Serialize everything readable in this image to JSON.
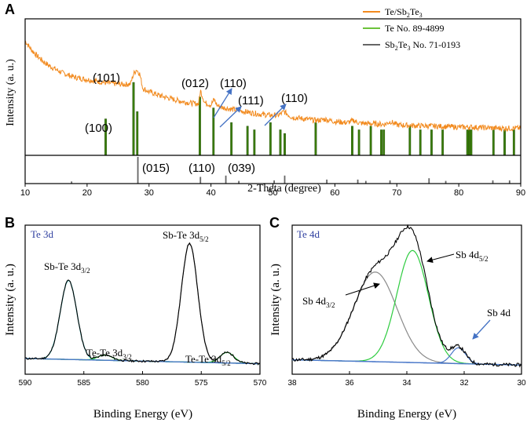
{
  "colors": {
    "xrd": "#f28a1e",
    "te_ref": "#3a7d0a",
    "te_ref_legend": "#6cc23a",
    "sb2te3_ref": "#666666",
    "fit_green": "#2ecc40",
    "fit_gray": "#8a8a8a",
    "fit_cyan": "#2ab7b7",
    "background": "#4a78c9",
    "annotation_blue": "#4472c4",
    "panel_label_blue": "#3040a0"
  },
  "panels": {
    "a": {
      "label": "A"
    },
    "b": {
      "label": "B"
    },
    "c": {
      "label": "C"
    }
  },
  "chart_data": [
    {
      "id": "xrd",
      "type": "line",
      "title": "",
      "xlabel": "2-Theta (degree)",
      "ylabel": "Intensity (a. u.)",
      "xlim": [
        10,
        90
      ],
      "xticks": [
        10,
        20,
        30,
        40,
        50,
        60,
        70,
        80,
        90
      ],
      "legend_position": "top-right",
      "legend": [
        {
          "label_main": "Te/Sb",
          "sub1": "2",
          "label_mid": "Te",
          "sub2": "3",
          "label_tail": ""
        },
        {
          "label_main": "Te No. 89-4899",
          "sub1": "",
          "label_mid": "",
          "sub2": "",
          "label_tail": ""
        },
        {
          "label_main": "Sb",
          "sub1": "2",
          "label_mid": "Te",
          "sub2": "3",
          "label_tail": " No. 71-0193"
        }
      ],
      "series": [
        {
          "name": "Te/Sb2Te3",
          "x": [
            10,
            11,
            12,
            13,
            14,
            15,
            16,
            17,
            18,
            19,
            20,
            21,
            22,
            23,
            24,
            25,
            26,
            27,
            27.5,
            28,
            28.5,
            29,
            30,
            31,
            32,
            33,
            34,
            35,
            36,
            37,
            38,
            38.3,
            39,
            40,
            40.5,
            41,
            42,
            43,
            44,
            45,
            46,
            47,
            48,
            49,
            50,
            51,
            51.8,
            53,
            55,
            57,
            58.5,
            60,
            62,
            63,
            64,
            66,
            68,
            69,
            70,
            72,
            75,
            78,
            80,
            82,
            84,
            86,
            88,
            90
          ],
          "y": [
            100,
            92,
            86,
            81,
            77,
            74,
            71,
            69,
            67,
            66,
            65,
            64,
            63,
            62,
            61.5,
            61,
            60.5,
            61,
            70,
            74,
            70,
            57,
            54,
            52,
            50,
            48.5,
            47,
            45.5,
            44.5,
            43.5,
            43,
            55,
            44,
            42,
            47,
            41.5,
            39.5,
            38.5,
            37.5,
            36.5,
            35.5,
            34.5,
            33.5,
            33,
            32.5,
            33,
            36,
            31,
            29.5,
            28,
            29,
            27,
            26,
            28,
            25.5,
            25,
            24.5,
            27,
            24,
            23.5,
            23,
            22.5,
            22,
            22,
            21.5,
            21,
            21,
            21
          ]
        }
      ],
      "reference_te": {
        "name": "Te No. 89-4899",
        "positions": [
          23,
          27.5,
          28.1,
          38.2,
          40.4,
          43.3,
          45.9,
          47.0,
          49.6,
          51.2,
          51.9,
          56.9,
          62.8,
          63.9,
          65.8,
          67.5,
          67.9,
          72.1,
          73.8,
          75.6,
          77.4,
          81.4,
          81.7,
          82.0,
          85.6,
          87.4,
          88.9
        ],
        "heights": [
          50,
          100,
          60,
          80,
          65,
          45,
          40,
          35,
          45,
          35,
          30,
          45,
          40,
          35,
          40,
          35,
          35,
          40,
          35,
          35,
          35,
          35,
          35,
          35,
          35,
          35,
          35
        ]
      },
      "reference_sb2te3": {
        "name": "Sb2Te3 No. 71-0193",
        "positions": [
          17.5,
          28.2,
          38.3,
          42.4,
          44.5,
          50.2,
          51.9,
          58.7,
          63.7,
          65.0,
          68.9,
          75.2,
          77.9,
          85.5,
          88.2
        ],
        "heights": [
          8,
          100,
          25,
          30,
          10,
          12,
          30,
          15,
          15,
          10,
          12,
          20,
          10,
          12,
          12
        ]
      },
      "peak_labels": {
        "p100": "(100)",
        "p101": "(101)",
        "p012": "(012)",
        "p110a": "(110)",
        "p111": "(111)",
        "p110b": "(110)",
        "p015": "(015)",
        "p110c": "(110)",
        "p039": "(039)"
      }
    },
    {
      "id": "te3d",
      "type": "line",
      "title": "Te 3d",
      "xlabel": "Binding Energy (eV)",
      "ylabel": "Intensity (a. u.)",
      "xlim": [
        590,
        570
      ],
      "xticks": [
        590,
        585,
        580,
        575,
        570
      ],
      "baseline": 6,
      "peaks": [
        {
          "name": "Sb-Te 3d3/2",
          "center": 586.3,
          "height": 60,
          "width": 0.7,
          "color": "fit_cyan"
        },
        {
          "name": "Te-Te 3d3/2",
          "center": 583.2,
          "height": 4,
          "width": 0.6,
          "color": "fit_green"
        },
        {
          "name": "Sb-Te 3d5/2",
          "center": 576.0,
          "height": 90,
          "width": 0.7,
          "color": "fit_gray"
        },
        {
          "name": "Te-Te 3d5/2",
          "center": 572.8,
          "height": 8,
          "width": 0.6,
          "color": "fit_green"
        }
      ],
      "labels": {
        "sbte32": {
          "main": "Sb-Te 3d",
          "sub": "3/2"
        },
        "tete32": {
          "main": "Te-Te 3d",
          "sub": "3/2"
        },
        "sbte52": {
          "main": "Sb-Te 3d",
          "sub": "5/2"
        },
        "tete52": {
          "main": "Te-Te 3d",
          "sub": "5/2"
        }
      }
    },
    {
      "id": "te4d",
      "type": "line",
      "title": "Te 4d",
      "xlabel": "Binding Energy (eV)",
      "ylabel": "Intensity (a. u.)",
      "xlim": [
        38,
        30
      ],
      "xticks": [
        38,
        36,
        34,
        32,
        30
      ],
      "baseline": 5,
      "peaks": [
        {
          "name": "Sb 4d3/2",
          "center": 35.1,
          "height": 68,
          "width": 0.75,
          "color": "fit_gray"
        },
        {
          "name": "Sb 4d5/2",
          "center": 33.8,
          "height": 85,
          "width": 0.55,
          "color": "fit_green"
        },
        {
          "name": "Sb 4d",
          "center": 32.2,
          "height": 12,
          "width": 0.25,
          "color": "background"
        }
      ],
      "labels": {
        "sb4d32": {
          "main": "Sb 4d",
          "sub": "3/2"
        },
        "sb4d52": {
          "main": "Sb 4d",
          "sub": "5/2"
        },
        "sb4d": {
          "main": "Sb 4d",
          "sub": ""
        }
      }
    }
  ]
}
